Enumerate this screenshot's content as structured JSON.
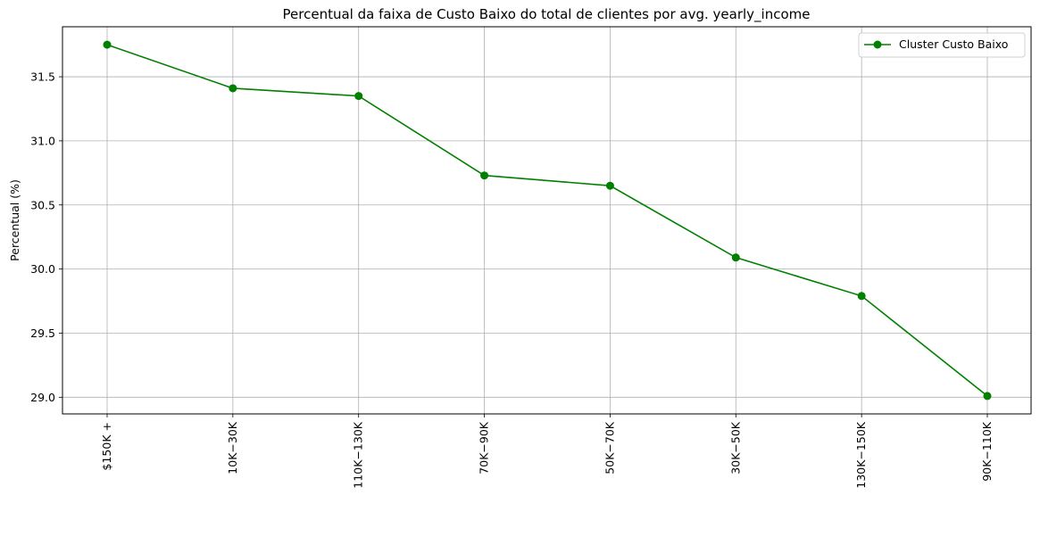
{
  "chart_data": {
    "type": "line",
    "title": "Percentual da faixa de Custo Baixo do total de clientes por avg. yearly_income",
    "xlabel": "",
    "ylabel": "Percentual (%)",
    "categories": [
      "$150K +",
      "$10K - $30K",
      "$110K - $130K",
      "$70K - $90K",
      "$50K - $70K",
      "$30K - $50K",
      "$130K - $150K",
      "$90K - $110K"
    ],
    "category_tick_labels": [
      "$150K +",
      "10K−30K",
      "110K−130K",
      "70K−90K",
      "50K−70K",
      "30K−50K",
      "130K−150K",
      "90K−110K"
    ],
    "series": [
      {
        "name": "Cluster Custo Baixo",
        "color": "#008000",
        "marker": "circle",
        "values": [
          31.75,
          31.41,
          31.35,
          30.73,
          30.65,
          30.09,
          29.79,
          29.01
        ]
      }
    ],
    "ylim": [
      28.87,
      31.89
    ],
    "yticks": [
      29.0,
      29.5,
      30.0,
      30.5,
      31.0,
      31.5
    ],
    "ytick_labels": [
      "29.0",
      "29.5",
      "30.0",
      "30.5",
      "31.0",
      "31.5"
    ],
    "grid": true,
    "legend_position": "top-right"
  }
}
